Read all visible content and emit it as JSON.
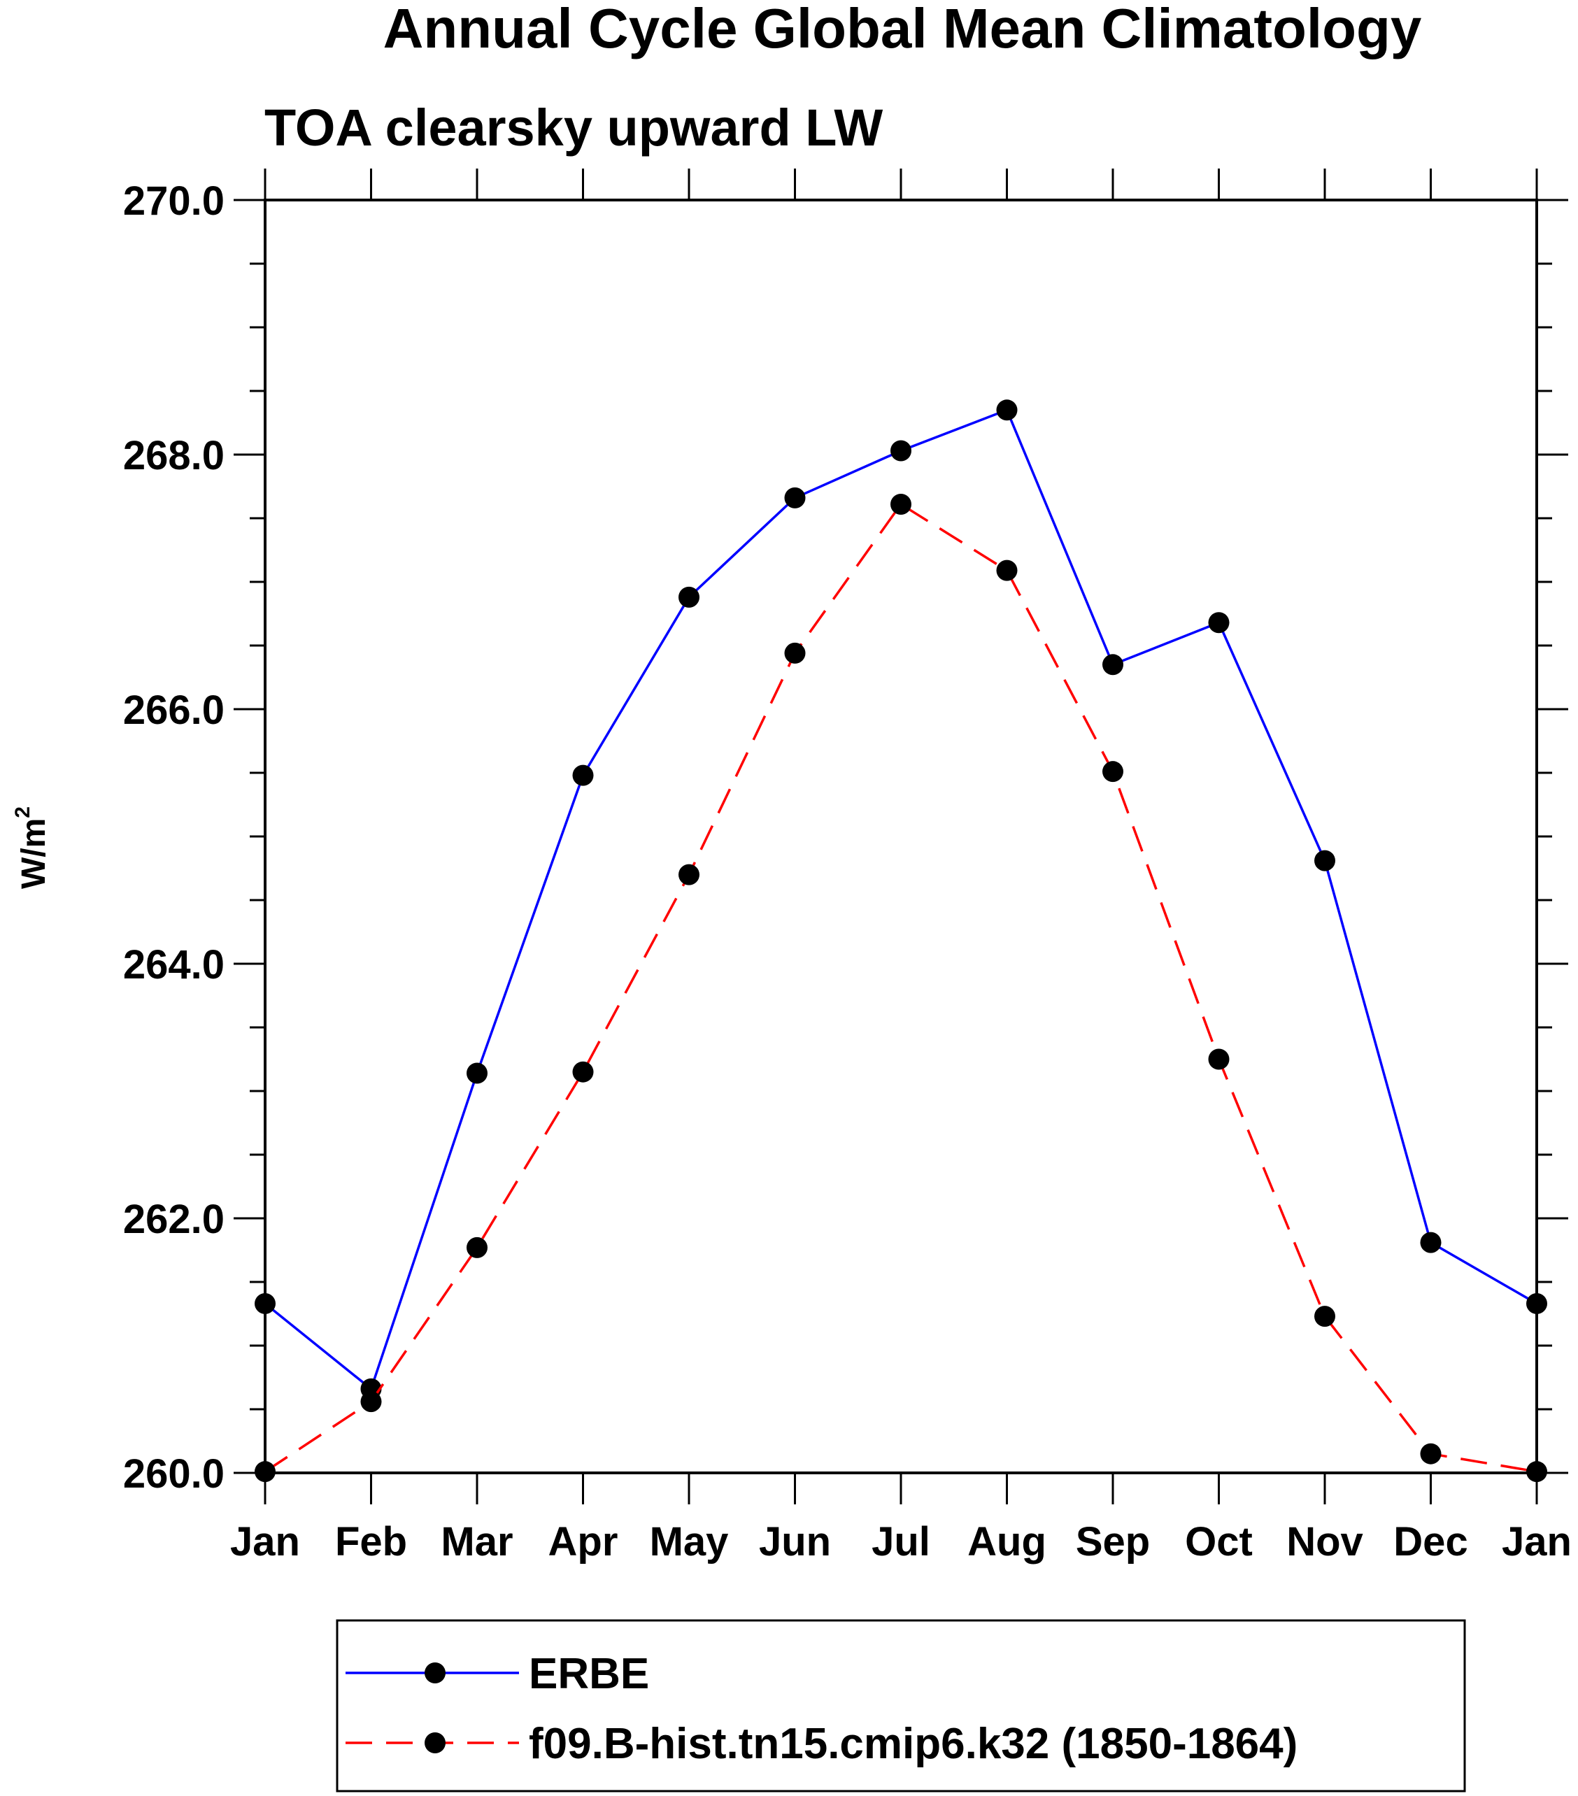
{
  "chart_data": {
    "type": "line",
    "title": "Annual Cycle Global Mean Climatology",
    "subtitle": "TOA clearsky upward LW",
    "ylabel_base": "W/m",
    "ylabel_sup": "2",
    "xlabel": "",
    "categories": [
      "Jan",
      "Feb",
      "Mar",
      "Apr",
      "May",
      "Jun",
      "Jul",
      "Aug",
      "Sep",
      "Oct",
      "Nov",
      "Dec",
      "Jan"
    ],
    "ylim": [
      260.0,
      270.0
    ],
    "y_major_ticks": [
      260.0,
      262.0,
      264.0,
      266.0,
      268.0,
      270.0
    ],
    "y_tick_labels": [
      "260.0",
      "262.0",
      "264.0",
      "266.0",
      "268.0",
      "270.0"
    ],
    "y_minor_step": 0.5,
    "grid": false,
    "legend_position": "bottom",
    "series": [
      {
        "name": "ERBE",
        "color": "#0000ff",
        "dash": "solid",
        "marker": "filled-circle",
        "values": [
          261.33,
          260.66,
          263.14,
          265.48,
          266.88,
          267.66,
          268.03,
          268.35,
          266.35,
          266.68,
          264.81,
          261.81,
          261.33
        ]
      },
      {
        "name": "f09.B-hist.tn15.cmip6.k32 (1850-1864)",
        "color": "#ff0000",
        "dash": "dashed",
        "marker": "filled-circle",
        "values": [
          260.01,
          260.56,
          261.77,
          263.15,
          264.7,
          266.44,
          267.61,
          267.09,
          265.51,
          263.25,
          261.23,
          260.15,
          260.01
        ]
      }
    ]
  }
}
